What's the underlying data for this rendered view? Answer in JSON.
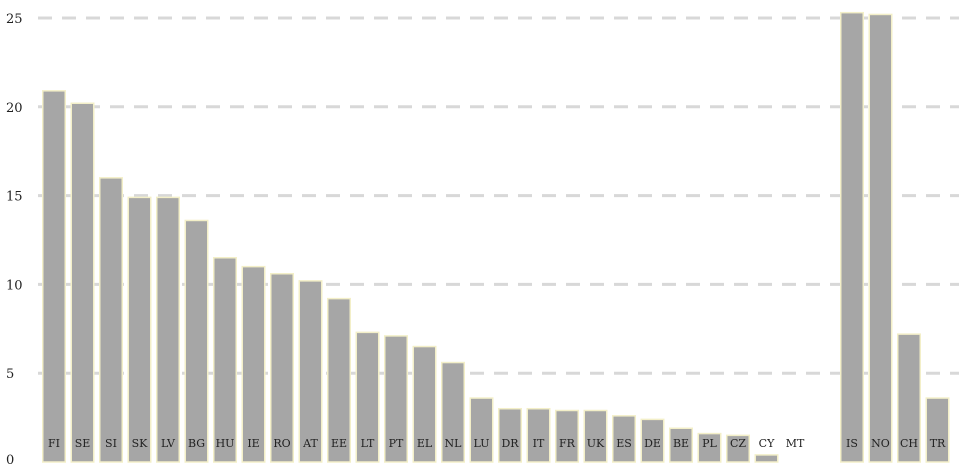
{
  "chart_data": {
    "type": "bar",
    "title": "",
    "xlabel": "",
    "ylabel": "",
    "ylim": [
      0,
      25
    ],
    "yticks": [
      0,
      5,
      10,
      15,
      20,
      25
    ],
    "grid": true,
    "categories": [
      "FI",
      "SE",
      "SI",
      "SK",
      "LV",
      "BG",
      "HU",
      "IE",
      "RO",
      "AT",
      "EE",
      "LT",
      "PT",
      "EL",
      "NL",
      "LU",
      "DR",
      "IT",
      "FR",
      "UK",
      "ES",
      "DE",
      "BE",
      "PL",
      "CZ",
      "CY",
      "MT",
      "IS",
      "NO",
      "CH",
      "TR"
    ],
    "values": [
      20.9,
      20.2,
      16.0,
      14.9,
      14.9,
      13.6,
      11.5,
      11.0,
      10.6,
      10.2,
      9.2,
      7.3,
      7.1,
      6.5,
      5.6,
      3.6,
      3.0,
      3.0,
      2.9,
      2.9,
      2.6,
      2.4,
      1.9,
      1.6,
      1.5,
      0.4,
      0.0,
      25.3,
      25.2,
      7.2,
      3.6
    ],
    "colors": {
      "bar": "#a6a6a6",
      "bar_edge": "#f3efc8",
      "grid": "#d8d8d8",
      "text": "#222222"
    }
  }
}
